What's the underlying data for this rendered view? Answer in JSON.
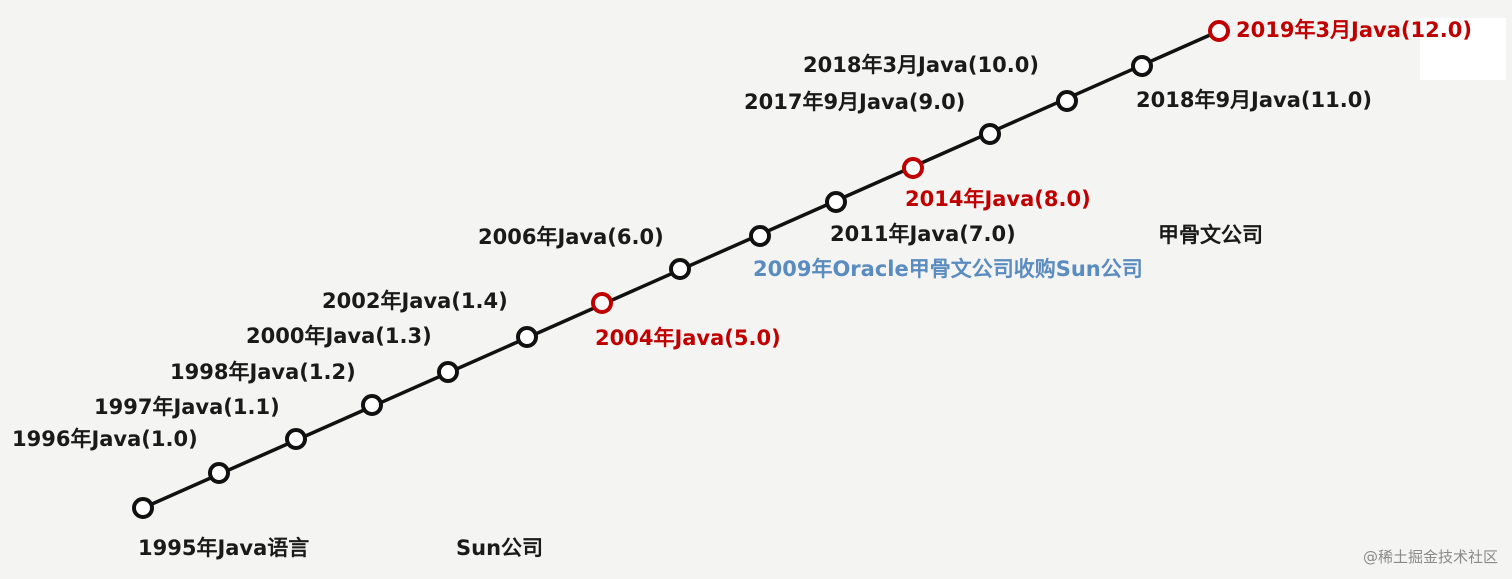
{
  "colors": {
    "line": "#111111",
    "node_default": "#111111",
    "node_highlight": "#c00000",
    "label_default": "#1a1a1a",
    "label_highlight": "#c00000",
    "label_note": "#5b8cc0"
  },
  "timeline": {
    "nodes": [
      {
        "id": "1995",
        "highlight": false
      },
      {
        "id": "1996",
        "highlight": false
      },
      {
        "id": "1997",
        "highlight": false
      },
      {
        "id": "1998",
        "highlight": false
      },
      {
        "id": "2000",
        "highlight": false
      },
      {
        "id": "2002",
        "highlight": false
      },
      {
        "id": "2004",
        "highlight": true
      },
      {
        "id": "2006",
        "highlight": false
      },
      {
        "id": "2009",
        "highlight": false
      },
      {
        "id": "2011",
        "highlight": false
      },
      {
        "id": "2014",
        "highlight": true
      },
      {
        "id": "2017",
        "highlight": false
      },
      {
        "id": "2018-09",
        "highlight": false
      },
      {
        "id": "2018-03",
        "highlight": false
      },
      {
        "id": "2019",
        "highlight": true
      }
    ],
    "labels": {
      "l1995": "1995年Java语言",
      "l1996": "1996年Java(1.0)",
      "l1997": "1997年Java(1.1)",
      "l1998": "1998年Java(1.2)",
      "l2000": "2000年Java(1.3)",
      "l2002": "2002年Java(1.4)",
      "l2004": "2004年Java(5.0)",
      "l2006": "2006年Java(6.0)",
      "l2009": "2009年Oracle甲骨文公司收购Sun公司",
      "l2011": "2011年Java(7.0)",
      "l2014": "2014年Java(8.0)",
      "l2017": "2017年9月Java(9.0)",
      "l201803": "2018年3月Java(10.0)",
      "l201809": "2018年9月Java(11.0)",
      "l2019": "2019年3月Java(12.0)"
    },
    "era_labels": {
      "sun": "Sun公司",
      "oracle": "甲骨文公司"
    }
  },
  "watermark": "@稀土掘金技术社区"
}
